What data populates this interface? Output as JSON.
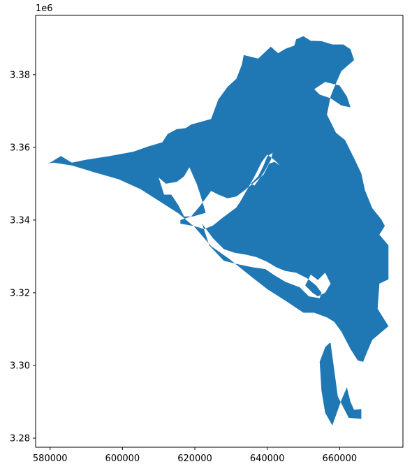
{
  "chart_data": {
    "type": "map",
    "title": "",
    "xlabel": "",
    "ylabel": "",
    "x_offset_label": "",
    "y_offset_label": "1e6",
    "xlim": [
      576000,
      677500
    ],
    "ylim": [
      3.2775,
      3.3963
    ],
    "xticks": [
      580000,
      600000,
      620000,
      640000,
      660000
    ],
    "xtick_labels": [
      "580000",
      "600000",
      "620000",
      "640000",
      "660000"
    ],
    "yticks": [
      3.28,
      3.3,
      3.32,
      3.34,
      3.36,
      3.38
    ],
    "ytick_labels": [
      "3.28",
      "3.30",
      "3.32",
      "3.34",
      "3.36",
      "3.38"
    ],
    "grid": false,
    "fill_color": "#1f77b4",
    "polygons": [
      {
        "name": "main-area",
        "x": [
          580000,
          583000,
          586000,
          590000,
          596000,
          603000,
          607000,
          611000,
          612500,
          615000,
          617500,
          619000,
          622000,
          624500,
          626500,
          629000,
          631500,
          633000,
          633500,
          637500,
          641000,
          643000,
          645000,
          647500,
          648000,
          650000,
          652000,
          655000,
          658000,
          661000,
          663000,
          664000,
          660500,
          658500,
          657500,
          656500,
          659000,
          661500,
          664000,
          666000,
          667000,
          669000,
          671500,
          672500,
          671000,
          673500,
          673500,
          671000,
          670500,
          673500,
          669000,
          667500,
          666500,
          665000,
          663000,
          660500,
          658500,
          656500,
          653000,
          650000,
          645500,
          640000,
          635500,
          629500,
          624500,
          620000,
          615500,
          610500,
          605000,
          599000,
          592000,
          586000,
          581000,
          579500
        ],
        "y": [
          3.3558,
          3.3576,
          3.3558,
          3.3566,
          3.3575,
          3.3588,
          3.3602,
          3.3614,
          3.3637,
          3.365,
          3.3653,
          3.3663,
          3.3671,
          3.3678,
          3.3732,
          3.3766,
          3.3789,
          3.3828,
          3.3854,
          3.3844,
          3.3877,
          3.3859,
          3.3871,
          3.388,
          3.3897,
          3.3906,
          3.3893,
          3.3892,
          3.3883,
          3.3883,
          3.387,
          3.384,
          3.381,
          3.3765,
          3.374,
          3.369,
          3.364,
          3.362,
          3.357,
          3.3528,
          3.3482,
          3.3433,
          3.3402,
          3.3384,
          3.336,
          3.333,
          3.3237,
          3.3225,
          3.3156,
          3.3108,
          3.307,
          3.3035,
          3.301,
          3.3014,
          3.3045,
          3.3093,
          3.312,
          3.3132,
          3.3145,
          3.3145,
          3.3175,
          3.321,
          3.3245,
          3.3293,
          3.3328,
          3.338,
          3.3418,
          3.345,
          3.3485,
          3.3512,
          3.3532,
          3.355,
          3.3558,
          3.3556
        ]
      },
      {
        "name": "south-peninsula",
        "x": [
          657500,
          659500,
          662500,
          666000,
          666000,
          664000,
          663000,
          662500,
          662000,
          660500,
          658000,
          656000,
          655000,
          654500,
          656000,
          657200,
          657500
        ],
        "y": [
          3.3062,
          3.2915,
          3.2856,
          3.2853,
          3.288,
          3.2878,
          3.29,
          3.292,
          3.294,
          3.2905,
          3.2835,
          3.287,
          3.293,
          3.301,
          3.305,
          3.3062,
          3.3062
        ]
      }
    ],
    "holes": [
      {
        "name": "bay-upper",
        "x": [
          616000,
          619000,
          621500,
          623000,
          624500,
          626500,
          629000,
          631500,
          633500,
          636000,
          639000,
          640500,
          642000,
          643500,
          642000,
          640000,
          638500,
          636500,
          634500,
          632500,
          631500,
          629500,
          627500,
          625000,
          622500,
          621000,
          619000,
          616000,
          616000
        ],
        "y": [
          3.34,
          3.341,
          3.344,
          3.346,
          3.348,
          3.347,
          3.346,
          3.3465,
          3.348,
          3.35,
          3.3525,
          3.3555,
          3.356,
          3.355,
          3.3565,
          3.358,
          3.356,
          3.352,
          3.3485,
          3.345,
          3.3435,
          3.342,
          3.3405,
          3.3385,
          3.3375,
          3.338,
          3.3385,
          3.339,
          3.34
        ]
      },
      {
        "name": "bay-west",
        "x": [
          610000,
          612000,
          615000,
          617000,
          618500,
          620500,
          621500,
          623000,
          619500,
          617000,
          615500,
          613500,
          611500,
          610000
        ],
        "y": [
          3.3517,
          3.35,
          3.3505,
          3.352,
          3.3545,
          3.35,
          3.347,
          3.342,
          3.341,
          3.341,
          3.344,
          3.347,
          3.347,
          3.3517
        ]
      },
      {
        "name": "bay-lower",
        "x": [
          622000,
          625000,
          628000,
          631000,
          634000,
          637000,
          640000,
          642500,
          645000,
          648000,
          651000,
          653500,
          655000,
          654500,
          651500,
          649000,
          645000,
          642000,
          639500,
          636000,
          632000,
          628000,
          624000,
          622000
        ],
        "y": [
          3.339,
          3.335,
          3.332,
          3.331,
          3.3305,
          3.3298,
          3.3285,
          3.327,
          3.326,
          3.3255,
          3.324,
          3.322,
          3.32,
          3.3185,
          3.319,
          3.3215,
          3.323,
          3.3248,
          3.3265,
          3.327,
          3.3278,
          3.3288,
          3.333,
          3.339
        ]
      },
      {
        "name": "bay-east-arm",
        "x": [
          650500,
          652000,
          654000,
          656000,
          657500,
          656000,
          654000,
          652500,
          650500
        ],
        "y": [
          3.322,
          3.325,
          3.3235,
          3.3255,
          3.3225,
          3.32,
          3.319,
          3.32,
          3.322
        ]
      },
      {
        "name": "bay-inlet-north",
        "x": [
          635500,
          637500,
          639000,
          640000,
          641500,
          641000,
          639000,
          636500,
          635500
        ],
        "y": [
          3.35,
          3.352,
          3.355,
          3.3575,
          3.3585,
          3.3565,
          3.353,
          3.3495,
          3.35
        ]
      },
      {
        "name": "bay-northeast",
        "x": [
          653000,
          656000,
          660000,
          662000,
          663000,
          660500,
          657500,
          654500,
          653000
        ],
        "y": [
          3.376,
          3.378,
          3.377,
          3.374,
          3.371,
          3.3715,
          3.3735,
          3.3745,
          3.376
        ]
      }
    ]
  }
}
